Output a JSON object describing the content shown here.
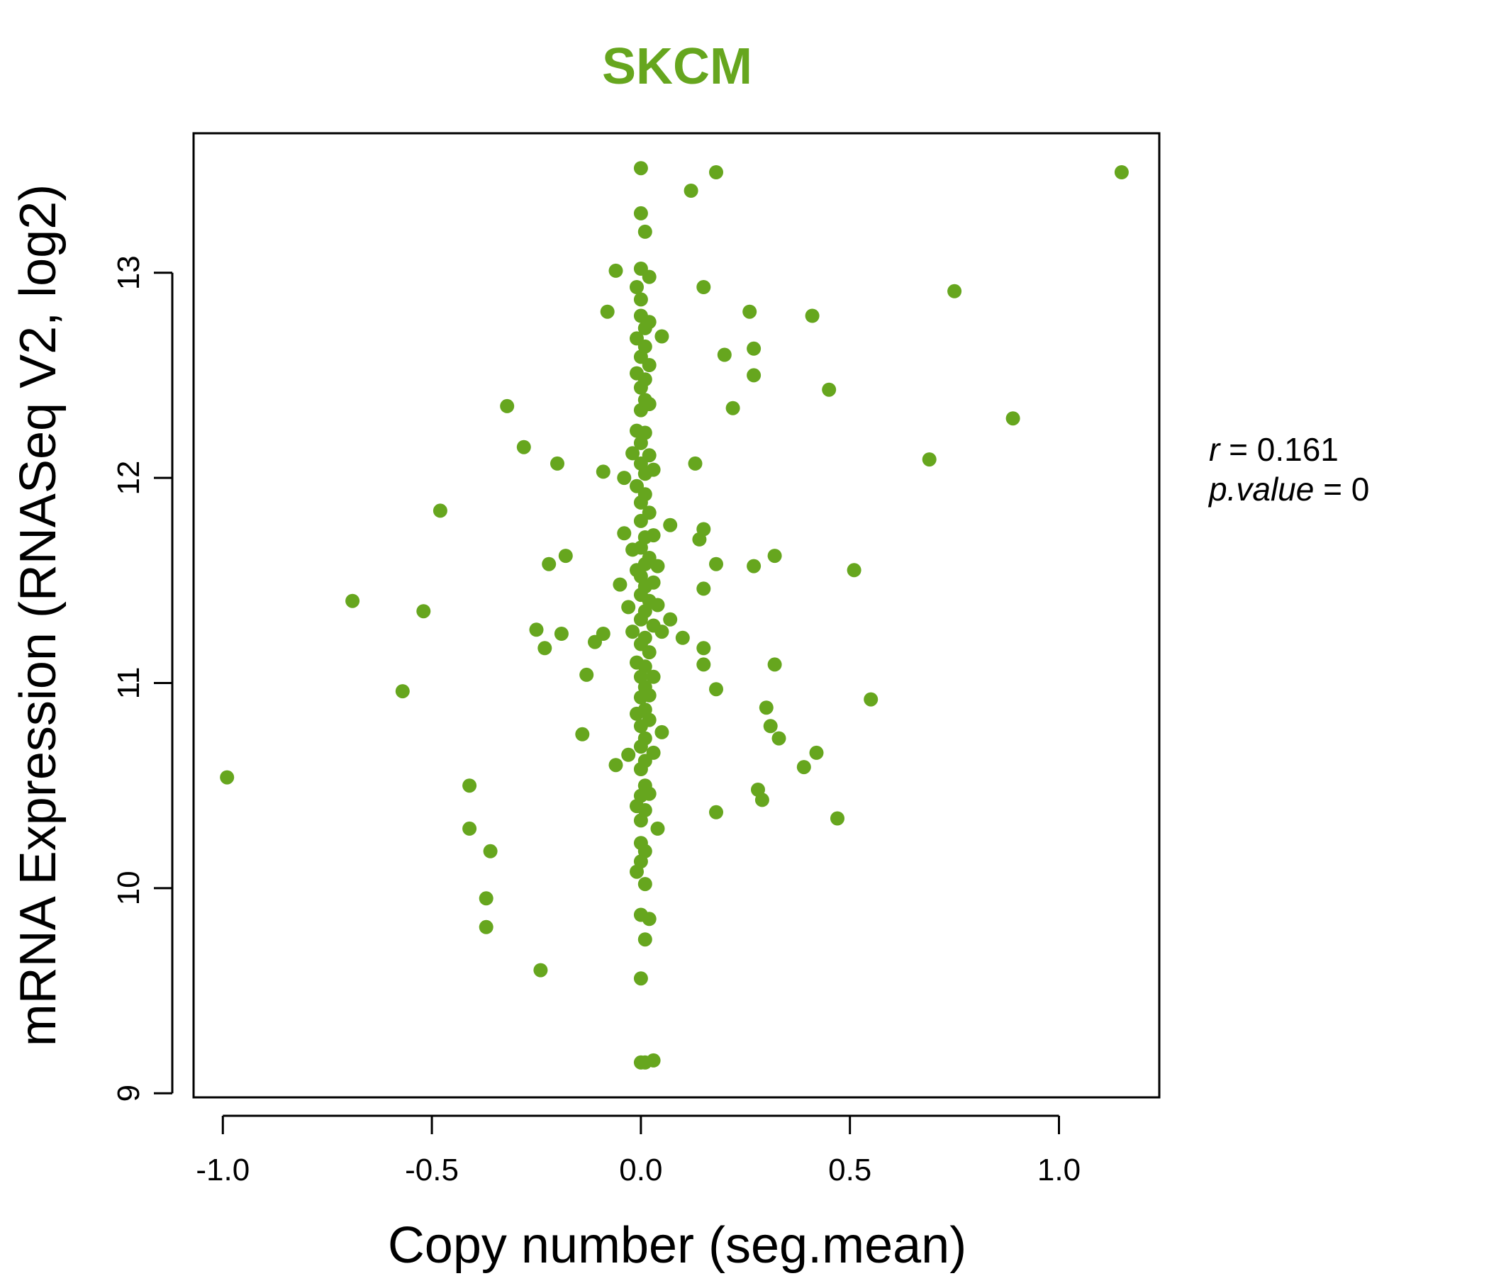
{
  "chart_data": {
    "type": "scatter",
    "title": "SKCM",
    "xlabel": "Copy number (seg.mean)",
    "ylabel": "mRNA Expression (RNASeq V2, log2)",
    "xlim": [
      -1.07,
      1.24
    ],
    "ylim": [
      8.98,
      13.68
    ],
    "x_ticks": [
      -1.0,
      -0.5,
      0.0,
      0.5,
      1.0
    ],
    "x_tick_labels": [
      "-1.0",
      "-0.5",
      "0.0",
      "0.5",
      "1.0"
    ],
    "y_ticks": [
      9,
      10,
      11,
      12,
      13
    ],
    "y_tick_labels": [
      "9",
      "10",
      "11",
      "12",
      "13"
    ],
    "annotation": {
      "r_label": "r",
      "r_value": "0.161",
      "p_label": "p.value",
      "p_value": "0"
    },
    "colors": {
      "points": "#66a61e",
      "title": "#66a61e",
      "axis": "#000000"
    },
    "points": [
      {
        "x": -0.99,
        "y": 10.54
      },
      {
        "x": -0.69,
        "y": 11.4
      },
      {
        "x": -0.52,
        "y": 11.35
      },
      {
        "x": -0.57,
        "y": 10.96
      },
      {
        "x": -0.48,
        "y": 11.84
      },
      {
        "x": -0.41,
        "y": 10.5
      },
      {
        "x": -0.41,
        "y": 10.29
      },
      {
        "x": -0.36,
        "y": 10.18
      },
      {
        "x": -0.37,
        "y": 9.95
      },
      {
        "x": -0.37,
        "y": 9.81
      },
      {
        "x": -0.32,
        "y": 12.35
      },
      {
        "x": -0.28,
        "y": 12.15
      },
      {
        "x": -0.25,
        "y": 11.26
      },
      {
        "x": -0.23,
        "y": 11.17
      },
      {
        "x": -0.22,
        "y": 11.58
      },
      {
        "x": -0.2,
        "y": 12.07
      },
      {
        "x": -0.18,
        "y": 11.62
      },
      {
        "x": -0.19,
        "y": 11.24
      },
      {
        "x": -0.24,
        "y": 9.6
      },
      {
        "x": -0.14,
        "y": 10.75
      },
      {
        "x": -0.13,
        "y": 11.04
      },
      {
        "x": -0.11,
        "y": 11.2
      },
      {
        "x": -0.09,
        "y": 12.03
      },
      {
        "x": -0.09,
        "y": 11.24
      },
      {
        "x": -0.08,
        "y": 12.81
      },
      {
        "x": -0.06,
        "y": 13.01
      },
      {
        "x": -0.05,
        "y": 11.48
      },
      {
        "x": -0.06,
        "y": 10.6
      },
      {
        "x": -0.04,
        "y": 12.0
      },
      {
        "x": -0.04,
        "y": 11.73
      },
      {
        "x": -0.03,
        "y": 11.37
      },
      {
        "x": -0.03,
        "y": 10.65
      },
      {
        "x": -0.02,
        "y": 12.12
      },
      {
        "x": -0.02,
        "y": 11.65
      },
      {
        "x": -0.02,
        "y": 11.25
      },
      {
        "x": -0.01,
        "y": 12.93
      },
      {
        "x": -0.01,
        "y": 12.68
      },
      {
        "x": -0.01,
        "y": 12.51
      },
      {
        "x": -0.01,
        "y": 12.23
      },
      {
        "x": -0.01,
        "y": 11.96
      },
      {
        "x": -0.01,
        "y": 11.55
      },
      {
        "x": -0.01,
        "y": 11.1
      },
      {
        "x": -0.01,
        "y": 10.85
      },
      {
        "x": -0.01,
        "y": 10.4
      },
      {
        "x": -0.01,
        "y": 10.08
      },
      {
        "x": 0.0,
        "y": 13.51
      },
      {
        "x": 0.0,
        "y": 13.29
      },
      {
        "x": 0.0,
        "y": 13.02
      },
      {
        "x": 0.0,
        "y": 12.87
      },
      {
        "x": 0.0,
        "y": 12.79
      },
      {
        "x": 0.0,
        "y": 12.59
      },
      {
        "x": 0.0,
        "y": 12.44
      },
      {
        "x": 0.0,
        "y": 12.33
      },
      {
        "x": 0.0,
        "y": 12.17
      },
      {
        "x": 0.0,
        "y": 12.07
      },
      {
        "x": 0.0,
        "y": 11.88
      },
      {
        "x": 0.0,
        "y": 11.79
      },
      {
        "x": 0.0,
        "y": 11.66
      },
      {
        "x": 0.0,
        "y": 11.52
      },
      {
        "x": 0.0,
        "y": 11.43
      },
      {
        "x": 0.0,
        "y": 11.31
      },
      {
        "x": 0.0,
        "y": 11.19
      },
      {
        "x": 0.0,
        "y": 11.03
      },
      {
        "x": 0.0,
        "y": 10.93
      },
      {
        "x": 0.0,
        "y": 10.79
      },
      {
        "x": 0.0,
        "y": 10.69
      },
      {
        "x": 0.0,
        "y": 10.58
      },
      {
        "x": 0.0,
        "y": 10.45
      },
      {
        "x": 0.0,
        "y": 10.33
      },
      {
        "x": 0.0,
        "y": 10.22
      },
      {
        "x": 0.0,
        "y": 10.13
      },
      {
        "x": 0.0,
        "y": 9.87
      },
      {
        "x": 0.0,
        "y": 9.56
      },
      {
        "x": 0.0,
        "y": 9.15
      },
      {
        "x": 0.01,
        "y": 13.2
      },
      {
        "x": 0.01,
        "y": 12.73
      },
      {
        "x": 0.01,
        "y": 12.64
      },
      {
        "x": 0.01,
        "y": 12.48
      },
      {
        "x": 0.01,
        "y": 12.38
      },
      {
        "x": 0.01,
        "y": 12.22
      },
      {
        "x": 0.01,
        "y": 12.02
      },
      {
        "x": 0.01,
        "y": 11.92
      },
      {
        "x": 0.01,
        "y": 11.71
      },
      {
        "x": 0.01,
        "y": 11.58
      },
      {
        "x": 0.01,
        "y": 11.47
      },
      {
        "x": 0.01,
        "y": 11.35
      },
      {
        "x": 0.01,
        "y": 11.22
      },
      {
        "x": 0.01,
        "y": 11.08
      },
      {
        "x": 0.01,
        "y": 10.98
      },
      {
        "x": 0.01,
        "y": 10.87
      },
      {
        "x": 0.01,
        "y": 10.73
      },
      {
        "x": 0.01,
        "y": 10.62
      },
      {
        "x": 0.01,
        "y": 10.5
      },
      {
        "x": 0.01,
        "y": 10.38
      },
      {
        "x": 0.01,
        "y": 10.18
      },
      {
        "x": 0.01,
        "y": 10.02
      },
      {
        "x": 0.01,
        "y": 9.75
      },
      {
        "x": 0.01,
        "y": 9.15
      },
      {
        "x": 0.02,
        "y": 12.98
      },
      {
        "x": 0.02,
        "y": 12.76
      },
      {
        "x": 0.02,
        "y": 12.55
      },
      {
        "x": 0.02,
        "y": 12.36
      },
      {
        "x": 0.02,
        "y": 12.11
      },
      {
        "x": 0.02,
        "y": 11.83
      },
      {
        "x": 0.02,
        "y": 11.61
      },
      {
        "x": 0.02,
        "y": 11.4
      },
      {
        "x": 0.02,
        "y": 11.15
      },
      {
        "x": 0.02,
        "y": 10.94
      },
      {
        "x": 0.02,
        "y": 10.82
      },
      {
        "x": 0.02,
        "y": 10.46
      },
      {
        "x": 0.02,
        "y": 9.85
      },
      {
        "x": 0.03,
        "y": 12.04
      },
      {
        "x": 0.03,
        "y": 11.72
      },
      {
        "x": 0.03,
        "y": 11.49
      },
      {
        "x": 0.03,
        "y": 11.28
      },
      {
        "x": 0.03,
        "y": 11.03
      },
      {
        "x": 0.03,
        "y": 10.66
      },
      {
        "x": 0.03,
        "y": 9.16
      },
      {
        "x": 0.04,
        "y": 11.57
      },
      {
        "x": 0.04,
        "y": 11.38
      },
      {
        "x": 0.04,
        "y": 10.29
      },
      {
        "x": 0.05,
        "y": 12.69
      },
      {
        "x": 0.05,
        "y": 11.25
      },
      {
        "x": 0.05,
        "y": 10.76
      },
      {
        "x": 0.07,
        "y": 11.77
      },
      {
        "x": 0.07,
        "y": 11.31
      },
      {
        "x": 0.1,
        "y": 11.22
      },
      {
        "x": 0.12,
        "y": 13.4
      },
      {
        "x": 0.13,
        "y": 12.07
      },
      {
        "x": 0.14,
        "y": 11.7
      },
      {
        "x": 0.15,
        "y": 11.75
      },
      {
        "x": 0.15,
        "y": 12.93
      },
      {
        "x": 0.15,
        "y": 11.46
      },
      {
        "x": 0.15,
        "y": 11.17
      },
      {
        "x": 0.15,
        "y": 11.09
      },
      {
        "x": 0.18,
        "y": 13.49
      },
      {
        "x": 0.18,
        "y": 11.58
      },
      {
        "x": 0.18,
        "y": 10.97
      },
      {
        "x": 0.18,
        "y": 10.37
      },
      {
        "x": 0.2,
        "y": 12.6
      },
      {
        "x": 0.22,
        "y": 12.34
      },
      {
        "x": 0.26,
        "y": 12.81
      },
      {
        "x": 0.27,
        "y": 12.63
      },
      {
        "x": 0.27,
        "y": 12.5
      },
      {
        "x": 0.27,
        "y": 11.57
      },
      {
        "x": 0.28,
        "y": 10.48
      },
      {
        "x": 0.29,
        "y": 10.43
      },
      {
        "x": 0.3,
        "y": 10.88
      },
      {
        "x": 0.31,
        "y": 10.79
      },
      {
        "x": 0.32,
        "y": 11.62
      },
      {
        "x": 0.32,
        "y": 11.09
      },
      {
        "x": 0.33,
        "y": 10.73
      },
      {
        "x": 0.39,
        "y": 10.59
      },
      {
        "x": 0.41,
        "y": 12.79
      },
      {
        "x": 0.42,
        "y": 10.66
      },
      {
        "x": 0.45,
        "y": 12.43
      },
      {
        "x": 0.47,
        "y": 10.34
      },
      {
        "x": 0.51,
        "y": 11.55
      },
      {
        "x": 0.55,
        "y": 10.92
      },
      {
        "x": 0.69,
        "y": 12.09
      },
      {
        "x": 0.75,
        "y": 12.91
      },
      {
        "x": 0.89,
        "y": 12.29
      },
      {
        "x": 1.15,
        "y": 13.49
      }
    ]
  }
}
